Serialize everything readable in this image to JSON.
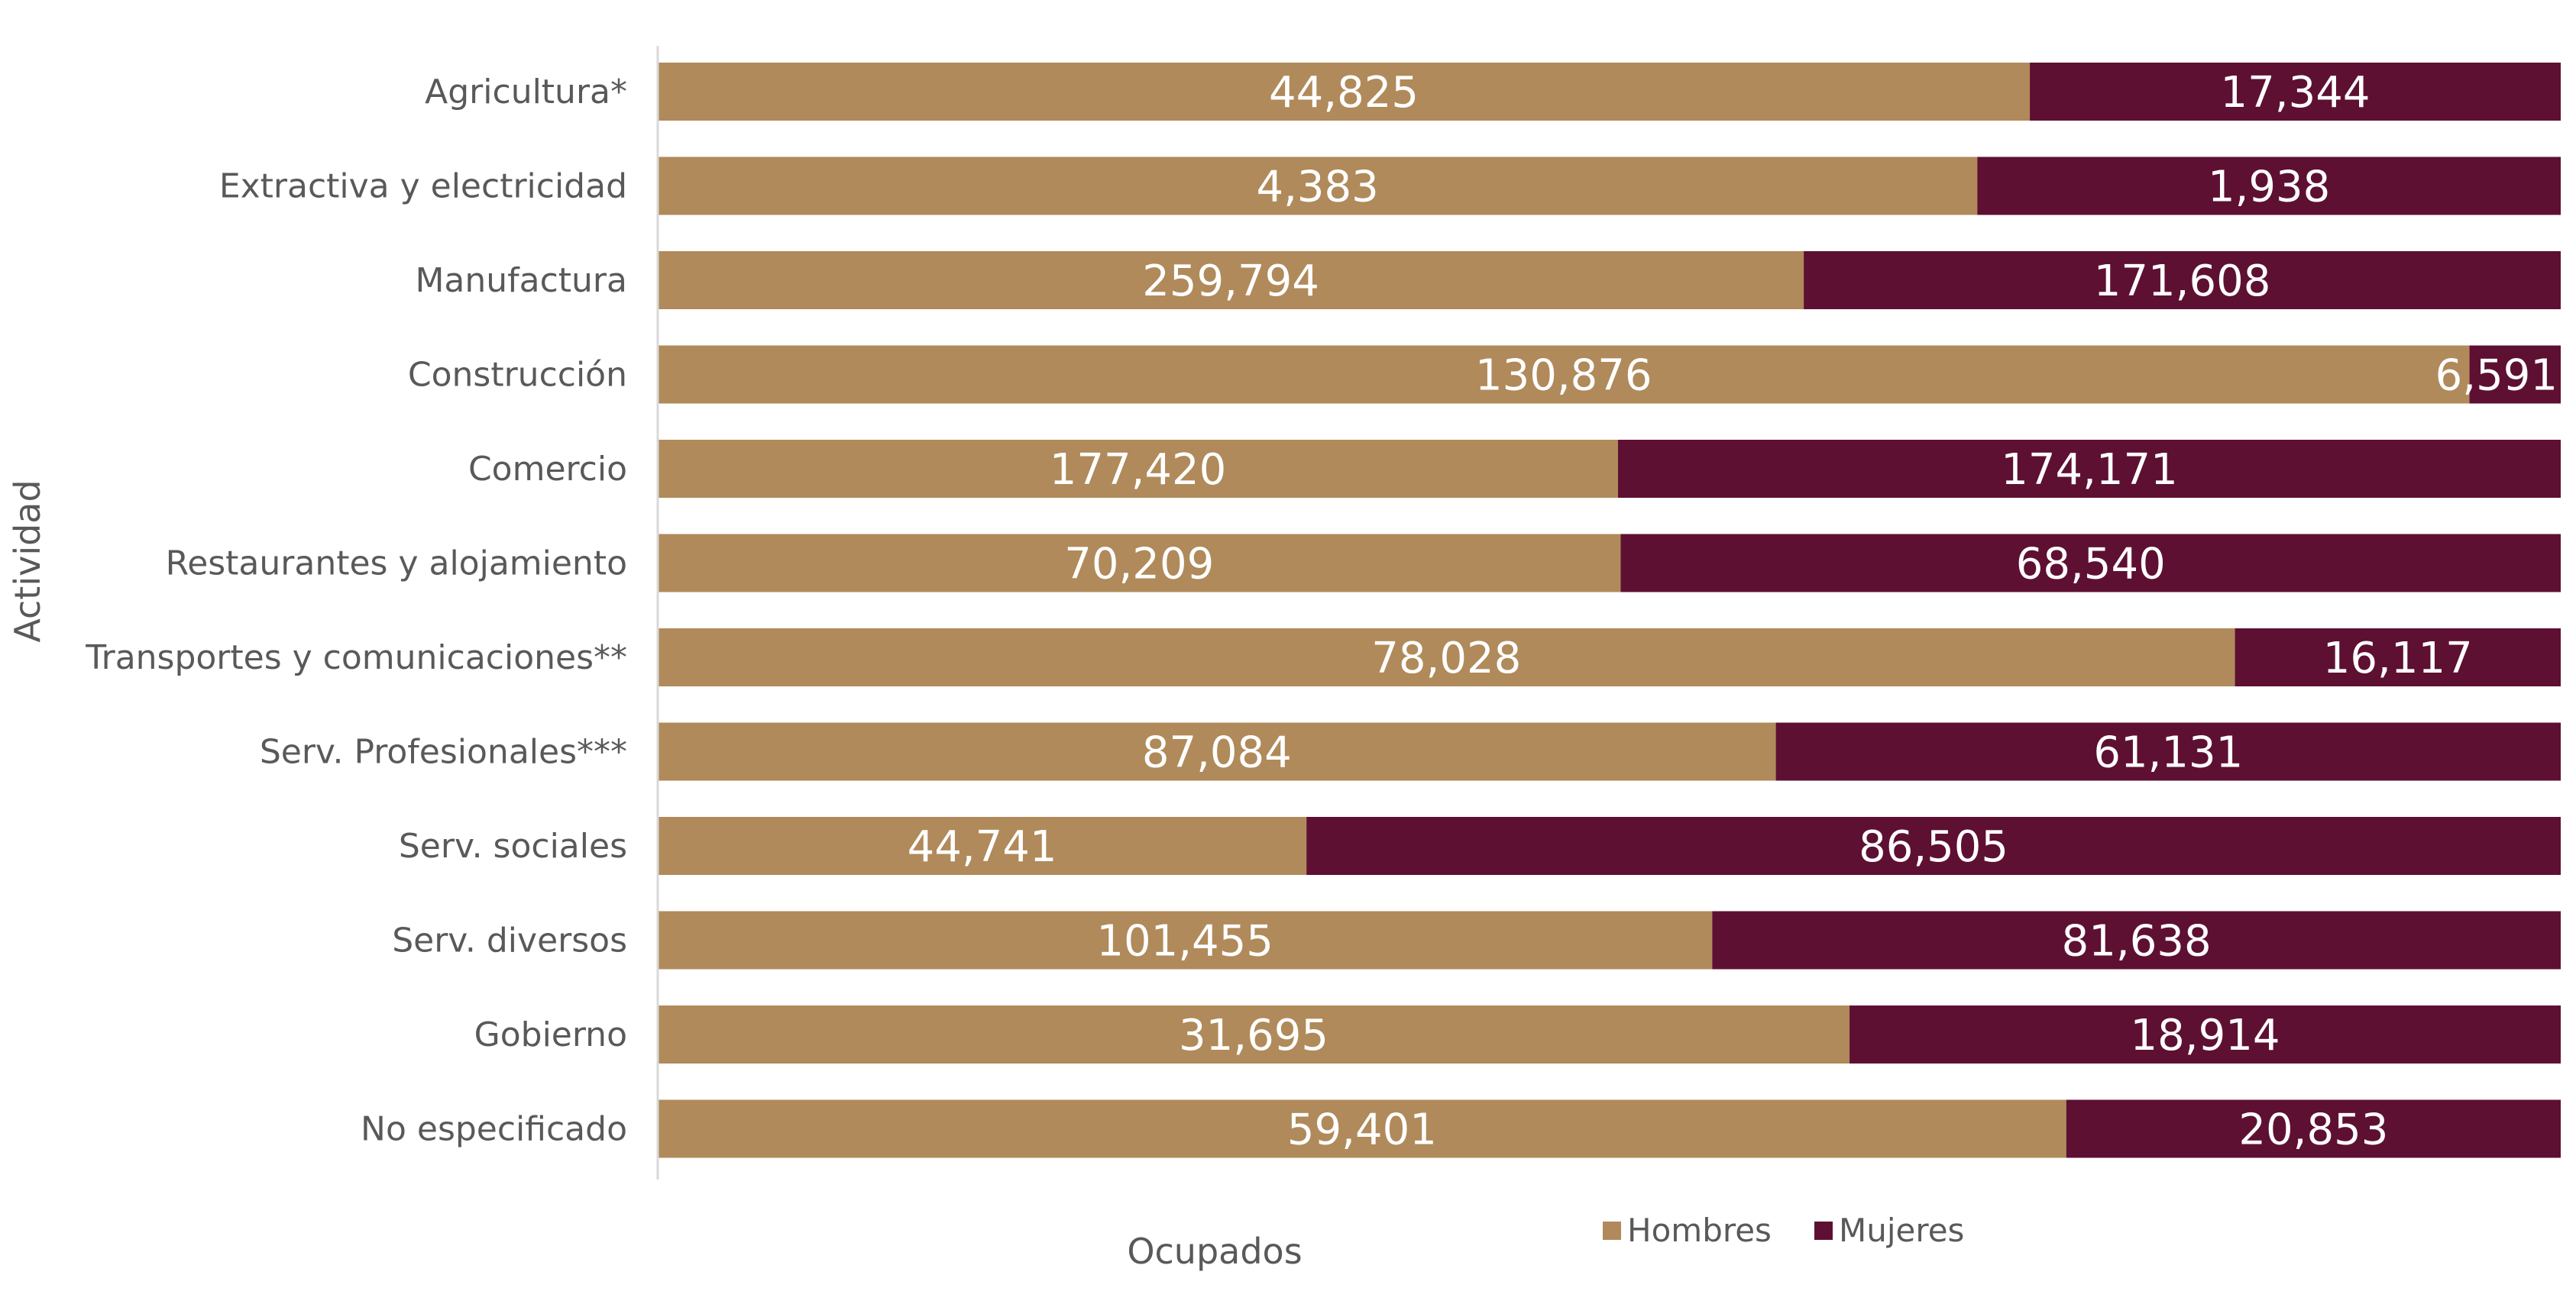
{
  "chart_data": {
    "type": "bar",
    "orientation": "horizontal",
    "stacking": "percent",
    "categories": [
      "Agricultura*",
      "Extractiva y electricidad",
      "Manufactura",
      "Construcción",
      "Comercio",
      "Restaurantes y alojamiento",
      "Transportes y comunicaciones**",
      "Serv. Profesionales***",
      "Serv. sociales",
      "Serv. diversos",
      "Gobierno",
      "No especificado"
    ],
    "series": [
      {
        "name": "Hombres",
        "color": "#B08A5A",
        "values": [
          44825,
          4383,
          259794,
          130876,
          177420,
          70209,
          78028,
          87084,
          44741,
          101455,
          31695,
          59401
        ],
        "labels": [
          "44,825",
          "4,383",
          "259,794",
          "130,876",
          "177,420",
          "70,209",
          "78,028",
          "87,084",
          "44,741",
          "101,455",
          "31,695",
          "59,401"
        ]
      },
      {
        "name": "Mujeres",
        "color": "#5E1032",
        "values": [
          17344,
          1938,
          171608,
          6591,
          174171,
          68540,
          16117,
          61131,
          86505,
          81638,
          18914,
          20853
        ],
        "labels": [
          "17,344",
          "1,938",
          "171,608",
          "6,591",
          "174,171",
          "68,540",
          "16,117",
          "61,131",
          "86,505",
          "81,638",
          "18,914",
          "20,853"
        ]
      }
    ],
    "xlabel": "Ocupados",
    "ylabel": "Actividad",
    "grid": false,
    "legend_position": "bottom-center"
  }
}
